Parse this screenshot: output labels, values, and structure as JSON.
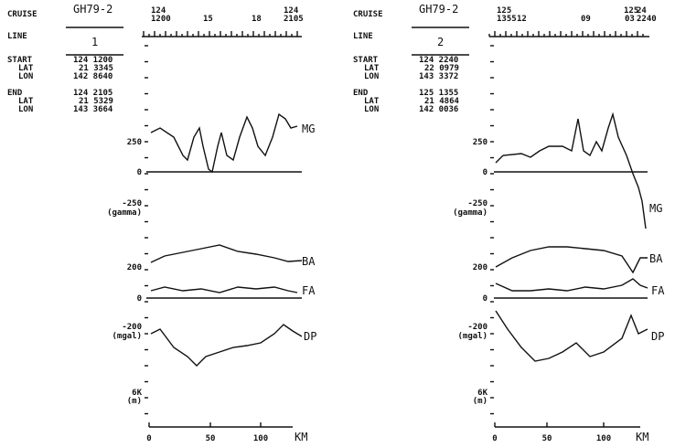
{
  "panels": [
    {
      "header": {
        "cruise_label": "CRUISE",
        "cruise": "GH79-2",
        "line_label": "LINE",
        "line": "1",
        "start_label": "START",
        "start": "124 1200",
        "start_lat_label": "LAT",
        "start_lat": "21 3345",
        "start_lon_label": "LON",
        "start_lon": "142 8640",
        "end_label": "END",
        "end": "124 2105",
        "end_lat_label": "LAT",
        "end_lat": "21 5329",
        "end_lon_label": "LON",
        "end_lon": "143 3664"
      },
      "time_labels": [
        "124",
        "1200",
        "15",
        "18",
        "124",
        "2105"
      ],
      "axis_labels": [
        "250",
        "0",
        "-250",
        "(gamma)",
        "200",
        "0",
        "-200",
        "(mgal)",
        "6K",
        "(m)"
      ],
      "curve_labels": [
        "MG",
        "BA",
        "FA",
        "DP"
      ],
      "x_labels": [
        "0",
        "50",
        "100",
        "KM"
      ]
    },
    {
      "header": {
        "cruise_label": "CRUISE",
        "cruise": "GH79-2",
        "line_label": "LINE",
        "line": "2",
        "start_label": "START",
        "start": "124 2240",
        "start_lat_label": "LAT",
        "start_lat": "22 0979",
        "start_lon_label": "LON",
        "start_lon": "143 3372",
        "end_label": "END",
        "end": "125 1355",
        "end_lat_label": "LAT",
        "end_lat": "21 4864",
        "end_lon_label": "LON",
        "end_lon": "142 0036"
      },
      "time_labels": [
        "125",
        "1355",
        "12",
        "09",
        "125",
        "24",
        "03",
        "2240"
      ],
      "axis_labels": [
        "250",
        "0",
        "-250",
        "(gamma)",
        "200",
        "0",
        "-200",
        "(mgal)",
        "6K",
        "(m)"
      ],
      "curve_labels": [
        "MG",
        "BA",
        "FA",
        "DP"
      ],
      "x_labels": [
        "0",
        "50",
        "100",
        "KM"
      ]
    }
  ]
}
